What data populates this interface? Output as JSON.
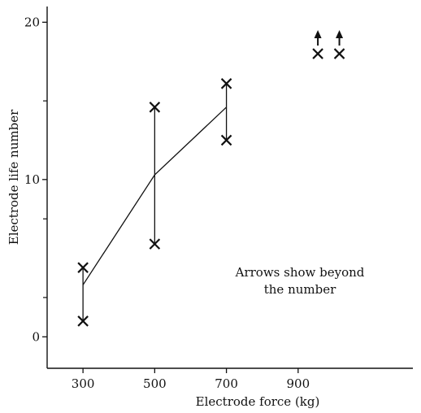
{
  "chart_data": {
    "type": "scatter",
    "xlabel": "Electrode force (kg)",
    "ylabel": "Electrode life number",
    "xlim": [
      200,
      1220
    ],
    "ylim": [
      -2,
      21
    ],
    "x_ticks": [
      {
        "value": 300,
        "label": "300"
      },
      {
        "value": 500,
        "label": "500"
      },
      {
        "value": 700,
        "label": "700"
      },
      {
        "value": 900,
        "label": "900"
      }
    ],
    "y_ticks": [
      {
        "value": 0,
        "label": "0"
      },
      {
        "value": 10,
        "label": "10"
      },
      {
        "value": 20,
        "label": "20"
      }
    ],
    "y_minor_ticks": [
      2.5,
      7.5,
      15
    ],
    "grid": false,
    "ranges": [
      {
        "x": 300,
        "min": 1,
        "max": 4.4
      },
      {
        "x": 500,
        "min": 5.9,
        "max": 14.6
      },
      {
        "x": 700,
        "min": 12.5,
        "max": 16.1
      }
    ],
    "mean_line": [
      {
        "x": 300,
        "y": 3.3
      },
      {
        "x": 500,
        "y": 10.3
      },
      {
        "x": 700,
        "y": 14.6
      }
    ],
    "points": [
      {
        "x": 300,
        "y": 4.4
      },
      {
        "x": 300,
        "y": 1
      },
      {
        "x": 500,
        "y": 14.6
      },
      {
        "x": 500,
        "y": 5.9
      },
      {
        "x": 700,
        "y": 16.1
      },
      {
        "x": 700,
        "y": 12.5
      },
      {
        "x": 955,
        "y": 18
      },
      {
        "x": 1015,
        "y": 18
      }
    ],
    "beyond_arrows": [
      {
        "x": 955,
        "y": 18
      },
      {
        "x": 1015,
        "y": 18
      }
    ],
    "annotation": [
      "Arrows show beyond",
      "the number"
    ]
  },
  "colors": {
    "ink": "#111111",
    "background": "#ffffff"
  }
}
